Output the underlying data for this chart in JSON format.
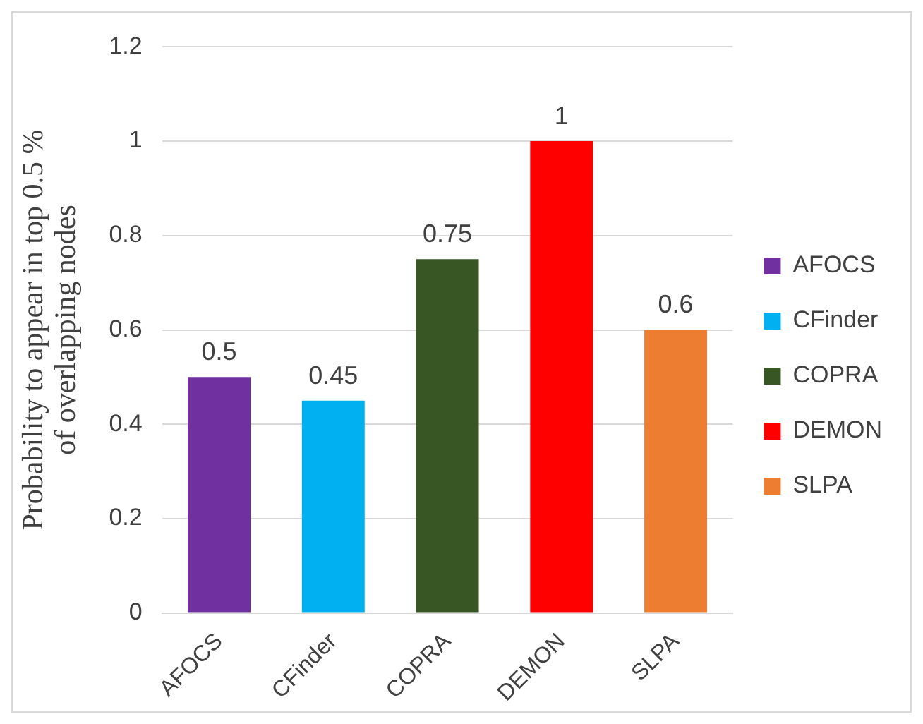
{
  "chart_data": {
    "type": "bar",
    "ylabel": "Probability to appear in top 0.5 %\nof overlapping nodes",
    "categories": [
      "AFOCS",
      "CFinder",
      "COPRA",
      "DEMON",
      "SLPA"
    ],
    "series": [
      {
        "name": "AFOCS",
        "color": "#7030a0",
        "values": [
          0.5,
          null,
          null,
          null,
          null
        ]
      },
      {
        "name": "CFinder",
        "color": "#00b0f0",
        "values": [
          null,
          0.45,
          null,
          null,
          null
        ]
      },
      {
        "name": "COPRA",
        "color": "#375623",
        "values": [
          null,
          null,
          0.75,
          null,
          null
        ]
      },
      {
        "name": "DEMON",
        "color": "#ff0000",
        "values": [
          null,
          null,
          null,
          1,
          null
        ]
      },
      {
        "name": "SLPA",
        "color": "#ed7d31",
        "values": [
          null,
          null,
          null,
          null,
          0.6
        ]
      }
    ],
    "ylim": [
      0,
      1.2
    ],
    "yticks": [
      0,
      0.2,
      0.4,
      0.6,
      0.8,
      1,
      1.2
    ],
    "grid": "y",
    "legend": "right",
    "data_labels": true
  }
}
